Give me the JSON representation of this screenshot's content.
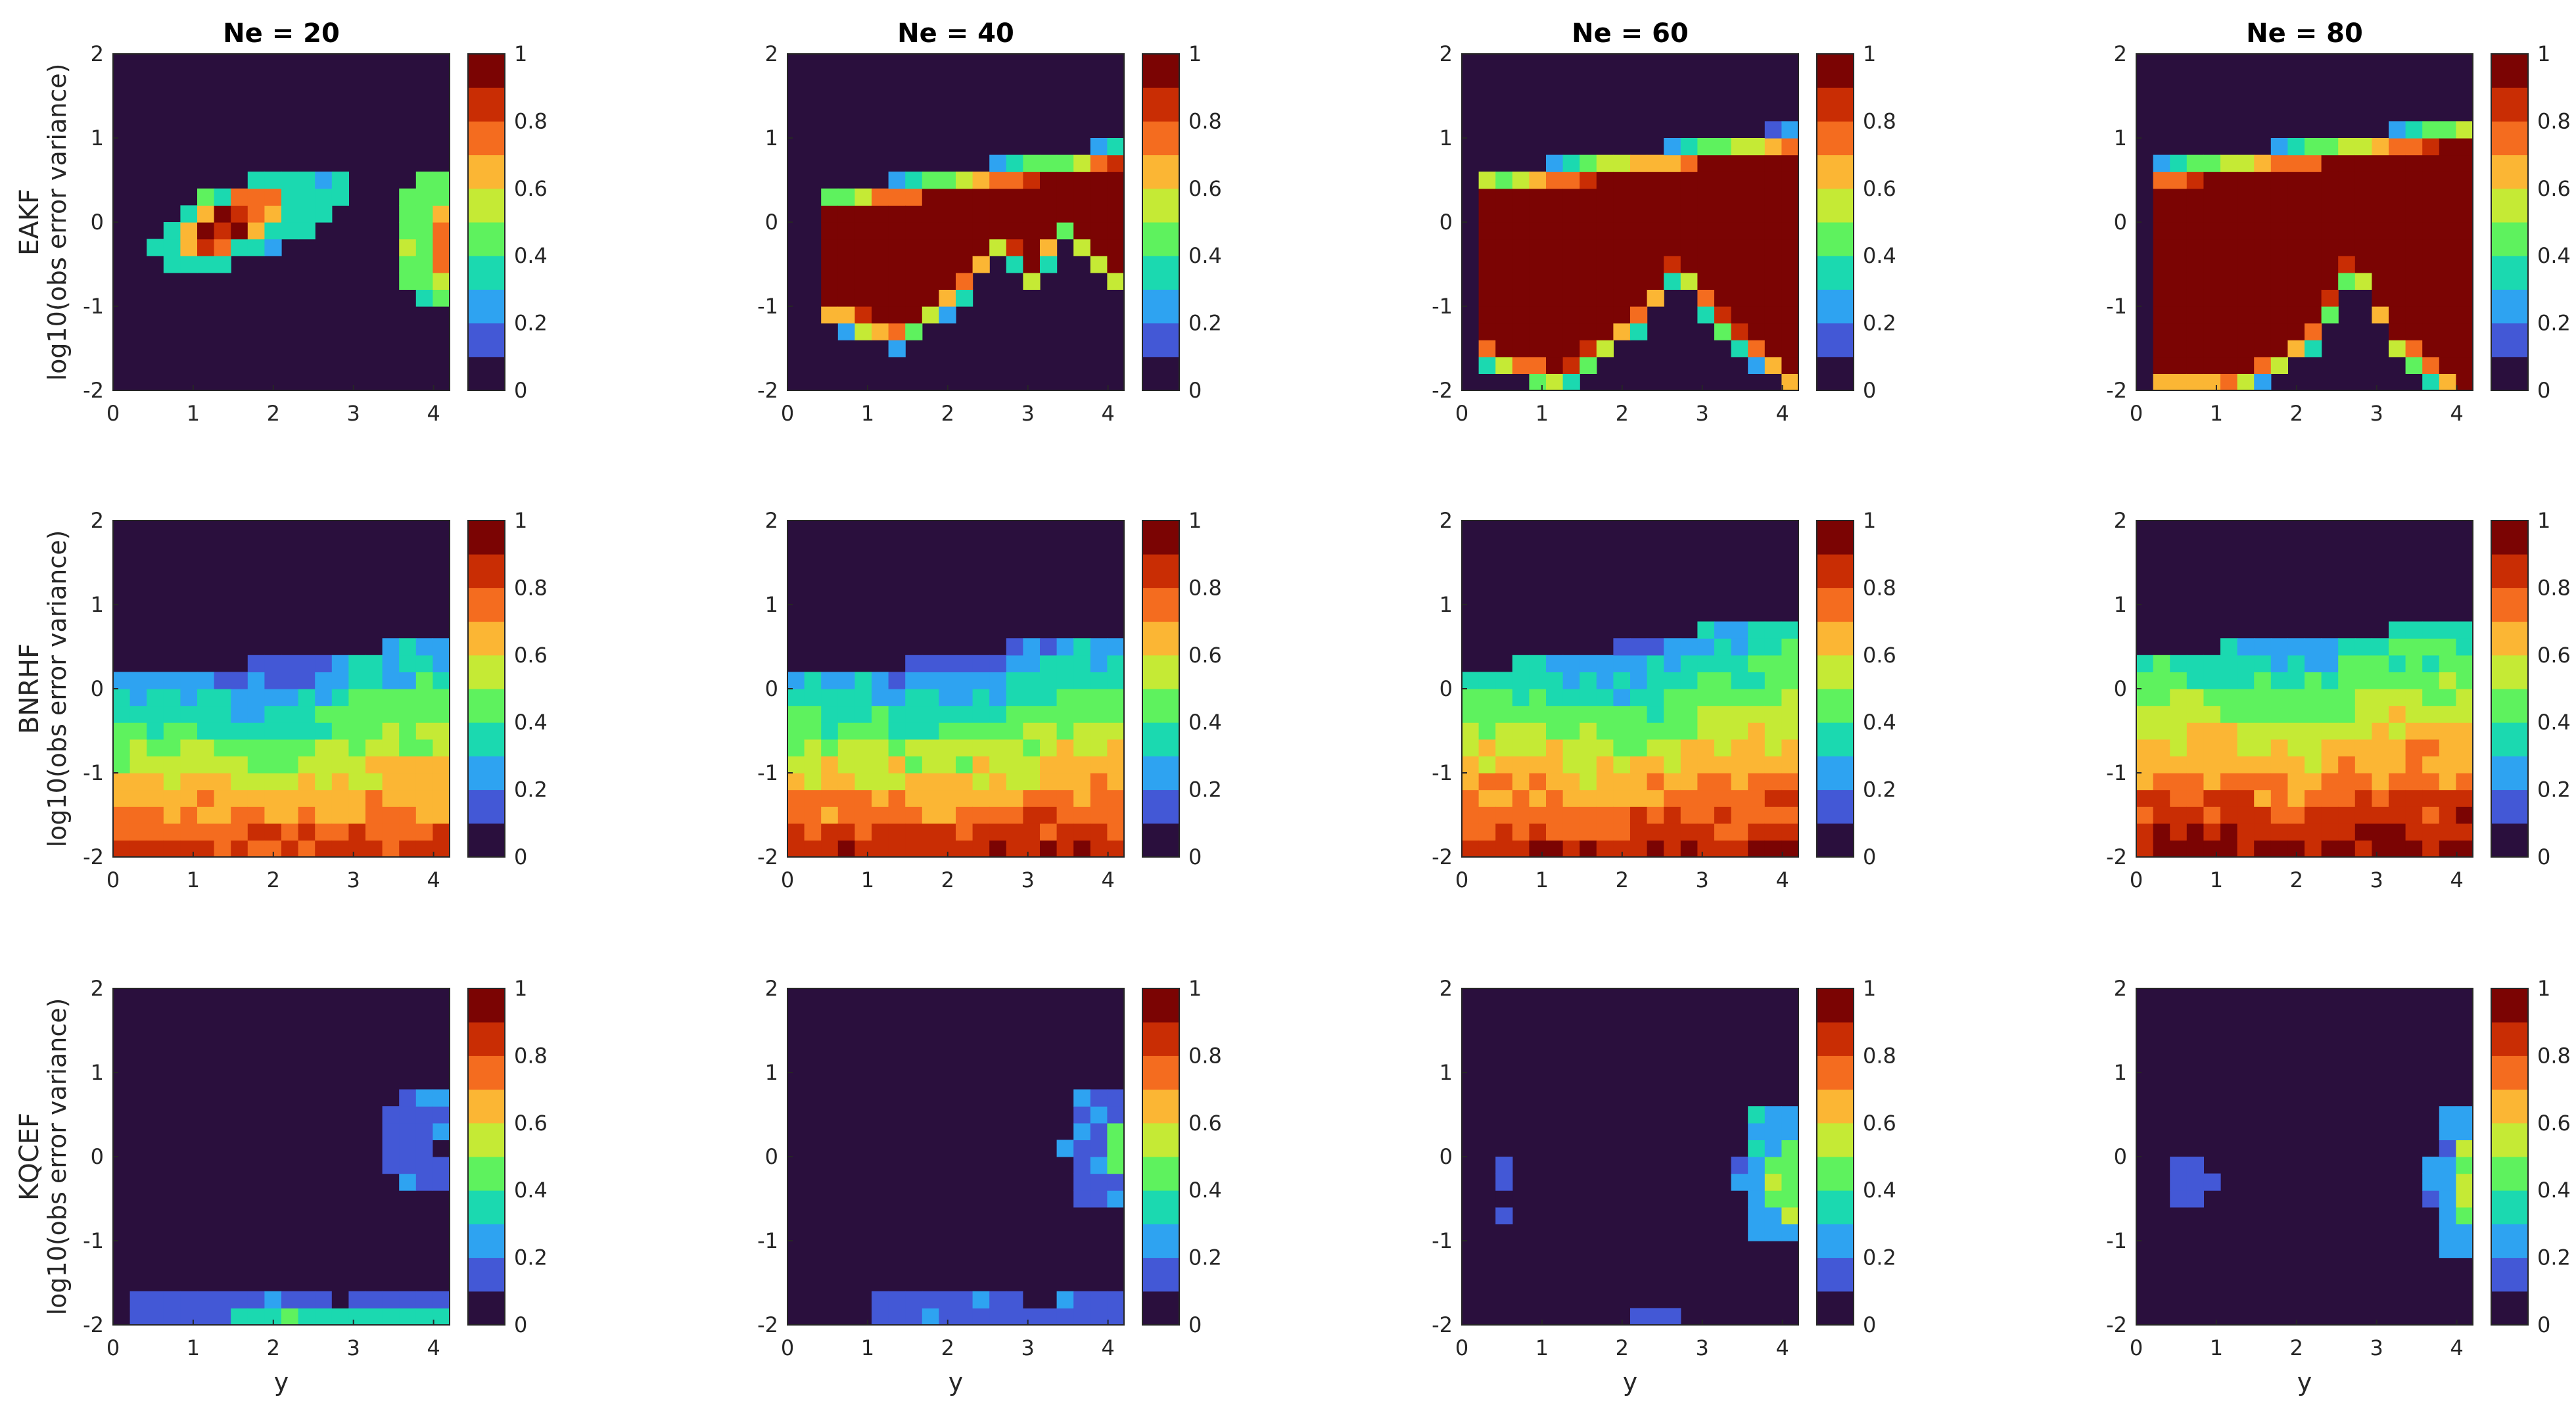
{
  "figure": {
    "column_titles": [
      "Ne = 20",
      "Ne = 40",
      "Ne = 60",
      "Ne = 80"
    ],
    "row_names": [
      "EAKF",
      "BNRHF",
      "KQCEF"
    ],
    "ylabel": "log10(obs error variance)",
    "xlabel": "y",
    "x_ticks": [
      "0",
      "1",
      "2",
      "3",
      "4"
    ],
    "y_ticks": [
      "2",
      "1",
      "0",
      "-1",
      "-2"
    ],
    "colorbar_ticks": [
      "1",
      "0.8",
      "0.6",
      "0.4",
      "0.2",
      "0"
    ],
    "colorbar_levels": [
      "#2a0f3d",
      "#4358d6",
      "#2ea3f1",
      "#1bd9b0",
      "#5ef25e",
      "#c5ea35",
      "#fbb634",
      "#f46c1f",
      "#c92d04",
      "#7b0403"
    ]
  },
  "chart_data": {
    "type": "heatmap",
    "x_range": [
      0,
      4.2
    ],
    "y_range": [
      -2,
      2
    ],
    "grid_shape": [
      20,
      20
    ],
    "color_range": [
      0,
      1
    ],
    "panels": [
      {
        "row": "EAKF",
        "column": "Ne = 20",
        "regions": [
          {
            "shape": "ellipse",
            "cx": 1.7,
            "cy": 0.05,
            "rx": 1.25,
            "ry": 0.45,
            "angle": 20,
            "value": 0.35
          },
          {
            "shape": "ellipse",
            "cx": 1.5,
            "cy": 0.0,
            "rx": 0.75,
            "ry": 0.3,
            "angle": 25,
            "value": 0.7
          },
          {
            "shape": "ellipse",
            "cx": 1.3,
            "cy": -0.1,
            "rx": 0.4,
            "ry": 0.2,
            "angle": 25,
            "value": 0.9
          },
          {
            "shape": "ellipse",
            "cx": 4.0,
            "cy": -0.2,
            "rx": 0.45,
            "ry": 0.75,
            "angle": 0,
            "value": 0.45
          },
          {
            "shape": "ellipse",
            "cx": 4.1,
            "cy": -0.2,
            "rx": 0.2,
            "ry": 0.35,
            "angle": 0,
            "value": 0.7
          }
        ]
      },
      {
        "row": "EAKF",
        "column": "Ne = 40",
        "regions": [
          {
            "shape": "band",
            "x0": 0.5,
            "x1": 4.2,
            "top": 0.8,
            "edge": [
              [
                0.5,
                -0.9
              ],
              [
                1.4,
                -1.2
              ],
              [
                2.2,
                -0.6
              ],
              [
                2.7,
                0.0
              ],
              [
                3.1,
                -0.6
              ],
              [
                3.4,
                0.2
              ],
              [
                4.2,
                -0.6
              ]
            ],
            "value": 1.0
          }
        ]
      },
      {
        "row": "EAKF",
        "column": "Ne = 60",
        "regions": [
          {
            "shape": "band",
            "x0": 0.3,
            "x1": 4.2,
            "top": 1.0,
            "edge": [
              [
                0.3,
                -1.4
              ],
              [
                1.2,
                -1.7
              ],
              [
                2.2,
                -1.0
              ],
              [
                2.7,
                -0.3
              ],
              [
                3.2,
                -1.0
              ],
              [
                4.2,
                -1.8
              ]
            ],
            "value": 1.0
          }
        ]
      },
      {
        "row": "EAKF",
        "column": "Ne = 80",
        "regions": [
          {
            "shape": "band",
            "x0": 0.2,
            "x1": 4.2,
            "top": 1.1,
            "edge": [
              [
                0.2,
                -1.7
              ],
              [
                1.2,
                -1.8
              ],
              [
                2.2,
                -1.2
              ],
              [
                2.7,
                -0.3
              ],
              [
                3.2,
                -1.2
              ],
              [
                4.2,
                -2.0
              ]
            ],
            "value": 1.0
          }
        ]
      },
      {
        "row": "BNRHF",
        "column": "Ne = 20",
        "regions": [
          {
            "shape": "gradient",
            "top": [
              0.1,
              0.6
            ],
            "bottom_value": 0.85,
            "top_value": 0.25,
            "value": 0.5
          }
        ]
      },
      {
        "row": "BNRHF",
        "column": "Ne = 40",
        "regions": [
          {
            "shape": "gradient",
            "top": [
              0.1,
              0.7
            ],
            "bottom_value": 0.9,
            "top_value": 0.25,
            "value": 0.55
          }
        ]
      },
      {
        "row": "BNRHF",
        "column": "Ne = 60",
        "regions": [
          {
            "shape": "gradient",
            "top": [
              0.2,
              0.9
            ],
            "bottom_value": 0.9,
            "top_value": 0.3,
            "value": 0.6
          }
        ]
      },
      {
        "row": "BNRHF",
        "column": "Ne = 80",
        "regions": [
          {
            "shape": "gradient",
            "top": [
              0.4,
              0.8
            ],
            "bottom_value": 0.95,
            "top_value": 0.35,
            "value": 0.65
          }
        ]
      },
      {
        "row": "KQCEF",
        "column": "Ne = 20",
        "regions": [
          {
            "shape": "ellipse",
            "cx": 3.9,
            "cy": 0.2,
            "rx": 0.5,
            "ry": 0.65,
            "angle": 0,
            "value": 0.15
          },
          {
            "shape": "rect",
            "x0": 0.3,
            "x1": 4.2,
            "y0": -2.0,
            "y1": -1.7,
            "value": 0.15
          },
          {
            "shape": "rect",
            "x0": 1.5,
            "x1": 4.2,
            "y0": -2.0,
            "y1": -1.85,
            "value": 0.35
          }
        ]
      },
      {
        "row": "KQCEF",
        "column": "Ne = 40",
        "regions": [
          {
            "shape": "ellipse",
            "cx": 4.0,
            "cy": 0.1,
            "rx": 0.55,
            "ry": 0.8,
            "angle": 0,
            "value": 0.2
          },
          {
            "shape": "ellipse",
            "cx": 4.15,
            "cy": 0.1,
            "rx": 0.2,
            "ry": 0.4,
            "angle": 0,
            "value": 0.45
          },
          {
            "shape": "rect",
            "x0": 1.0,
            "x1": 4.2,
            "y0": -2.0,
            "y1": -1.7,
            "value": 0.15
          }
        ]
      },
      {
        "row": "KQCEF",
        "column": "Ne = 60",
        "regions": [
          {
            "shape": "ellipse",
            "cx": 3.9,
            "cy": -0.2,
            "rx": 0.45,
            "ry": 0.9,
            "angle": 0,
            "value": 0.25
          },
          {
            "shape": "ellipse",
            "cx": 4.05,
            "cy": -0.3,
            "rx": 0.25,
            "ry": 0.5,
            "angle": 0,
            "value": 0.5
          },
          {
            "shape": "ellipse",
            "cx": 0.55,
            "cy": -0.4,
            "rx": 0.15,
            "ry": 0.45,
            "angle": 0,
            "value": 0.15
          },
          {
            "shape": "rect",
            "x0": 2.0,
            "x1": 2.7,
            "y0": -2.0,
            "y1": -1.85,
            "value": 0.15
          }
        ]
      },
      {
        "row": "KQCEF",
        "column": "Ne = 80",
        "regions": [
          {
            "shape": "ellipse",
            "cx": 4.0,
            "cy": -0.3,
            "rx": 0.35,
            "ry": 0.95,
            "angle": 0,
            "value": 0.25
          },
          {
            "shape": "ellipse",
            "cx": 4.1,
            "cy": -0.3,
            "rx": 0.2,
            "ry": 0.5,
            "angle": 0,
            "value": 0.5
          },
          {
            "shape": "ellipse",
            "cx": 0.65,
            "cy": -0.3,
            "rx": 0.3,
            "ry": 0.4,
            "angle": 0,
            "value": 0.15
          }
        ]
      }
    ]
  }
}
